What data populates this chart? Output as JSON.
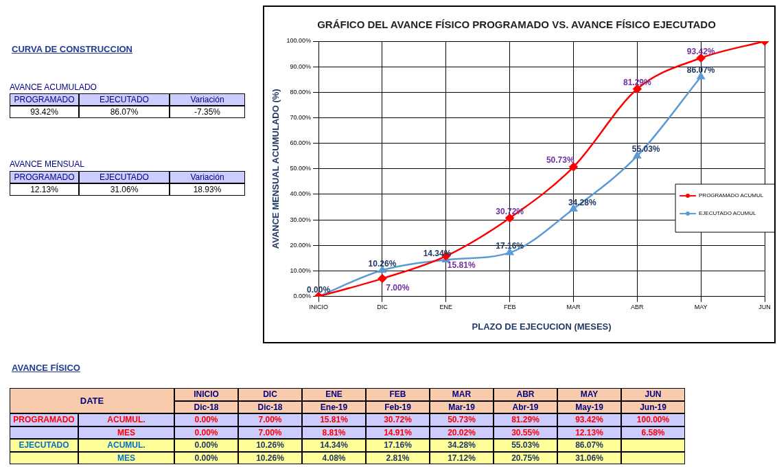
{
  "chart_data": [
    {
      "type": "other",
      "title": "CURVA DE CONSTRUCCION",
      "annotations": [
        "AVANCE ACUMULADO",
        "PROGRAMADO",
        "EJECUTADO",
        "Variación",
        "93.42%",
        "86.07%",
        "-7.35%",
        "AVANCE MENSUAL",
        "PROGRAMADO",
        "EJECUTADO",
        "Variación",
        "12.13%",
        "31.06%",
        "18.93%"
      ]
    },
    {
      "type": "line",
      "title": "GRÁFICO DEL AVANCE FÍSICO PROGRAMADO VS. AVANCE FÍSICO EJECUTADO",
      "xlabel": "PLAZO DE EJECUCION (MESES)",
      "ylabel": "AVANCE MENSUAL ACUMULADO (%)",
      "categories": [
        "INICIO",
        "DIC",
        "ENE",
        "FEB",
        "MAR",
        "ABR",
        "MAY",
        "JUN"
      ],
      "series": [
        {
          "name": "PROGRAMADO ACUMUL",
          "color": "#ff0000",
          "marker": "diamond",
          "values": [
            0,
            7,
            15.81,
            30.72,
            50.73,
            81.29,
            93.42,
            100
          ],
          "value_labels": [
            null,
            "7.00%",
            "15.81%",
            "30.72%",
            "50.73%",
            "81.29%",
            "93.42%",
            null
          ]
        },
        {
          "name": "EJECUTADO ACUMUL",
          "color": "#5b9bd5",
          "marker": "triangle",
          "values": [
            0,
            10.26,
            14.34,
            17.16,
            34.28,
            55.03,
            86.07,
            null
          ],
          "value_labels": [
            "0.00%",
            "10.26%",
            "14.34%",
            "17.16%",
            "34.28%",
            "55.03%",
            "86.07%",
            null
          ]
        }
      ],
      "ylim": [
        0,
        100
      ],
      "yticks": [
        {
          "value": 0,
          "label": "0.00%"
        },
        {
          "value": 10,
          "label": "10.00%"
        },
        {
          "value": 20,
          "label": "20.00%"
        },
        {
          "value": 30,
          "label": "30.00%"
        },
        {
          "value": 40,
          "label": "40.00%"
        },
        {
          "value": 50,
          "label": "50.00%"
        },
        {
          "value": 60,
          "label": "60.00%"
        },
        {
          "value": 70,
          "label": "70.00%"
        },
        {
          "value": 80,
          "label": "80.00%"
        },
        {
          "value": 90,
          "label": "90.00%"
        },
        {
          "value": 100,
          "label": "100.00%"
        }
      ],
      "grid": true,
      "legend": "right"
    },
    {
      "type": "other",
      "title": "AVANCE FÍSICO",
      "annotations": [
        "DATE",
        "INICIO",
        "DIC",
        "ENE",
        "FEB",
        "MAR",
        "ABR",
        "MAY",
        "JUN",
        "Dic-18",
        "Dic-18",
        "Ene-19",
        "Feb-19",
        "Mar-19",
        "Abr-19",
        "May-19",
        "Jun-19",
        "PROGRAMADO",
        "ACUMUL.",
        "0.00%",
        "7.00%",
        "15.81%",
        "30.72%",
        "50.73%",
        "81.29%",
        "93.42%",
        "100.00%",
        "MES",
        "0.00%",
        "7.00%",
        "8.81%",
        "14.91%",
        "20.02%",
        "30.55%",
        "12.13%",
        "6.58%",
        "EJECUTADO",
        "ACUMUL.",
        "0.00%",
        "10.26%",
        "14.34%",
        "17.16%",
        "34.28%",
        "55.03%",
        "86.07%",
        "MES",
        "0.00%",
        "10.26%",
        "4.08%",
        "2.81%",
        "17.12%",
        "20.75%",
        "31.06%"
      ]
    }
  ]
}
